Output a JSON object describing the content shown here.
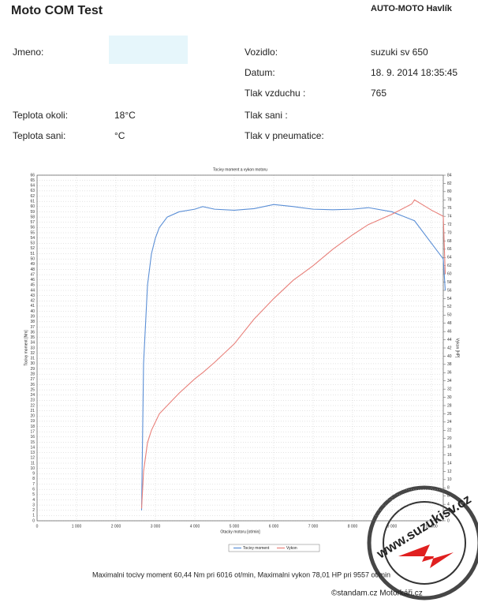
{
  "header": {
    "title": "Moto COM Test",
    "company": "AUTO-MOTO Havlík"
  },
  "fields": [
    {
      "label": "Jmeno:",
      "value": ""
    },
    {
      "label": "Vozidlo:",
      "value": "suzuki sv 650"
    },
    {
      "label": "Datum:",
      "value": "18. 9. 2014 18:35:45"
    },
    {
      "label": "Tlak vzduchu :",
      "value": "765"
    },
    {
      "label": "Teplota okoli:",
      "value": "18°C"
    },
    {
      "label": "Tlak sani :",
      "value": ""
    },
    {
      "label": "Teplota sani:",
      "value": "°C"
    },
    {
      "label": "Tlak v pneumatice:",
      "value": ""
    }
  ],
  "chart_data": {
    "type": "line",
    "title": "Tocivy moment a vykon motoru",
    "xlabel": "Otacky motoru [ot/min]",
    "ylabel": "Tocivy moment [Nm]",
    "y2label": "Vykon [HP]",
    "x": [
      2650,
      2700,
      2800,
      2900,
      3000,
      3100,
      3300,
      3600,
      4000,
      4200,
      4500,
      5000,
      5500,
      6000,
      6500,
      7000,
      7500,
      8000,
      8400,
      9000,
      9500,
      9570,
      10000,
      10200,
      10300,
      10350
    ],
    "series": [
      {
        "name": "Tocivy moment",
        "color": "#5b8fd6",
        "values": [
          2,
          30,
          45,
          51,
          54,
          56,
          58,
          59,
          59.5,
          60,
          59.5,
          59.3,
          59.6,
          60.4,
          60,
          59.5,
          59.4,
          59.5,
          59.8,
          59,
          57.5,
          57.3,
          53,
          51,
          50,
          44
        ]
      },
      {
        "name": "Vykon",
        "color": "#e8807a",
        "axis": "y2",
        "values": [
          3,
          12,
          19,
          22,
          24,
          26,
          28,
          31,
          34.5,
          36,
          38.5,
          43,
          49,
          54,
          58.5,
          62,
          66,
          69.5,
          72,
          74.5,
          77,
          78,
          75.5,
          74.5,
          74,
          60
        ]
      }
    ],
    "xlim": [
      0,
      10300
    ],
    "xticks": [
      0,
      {
        "value": 1000,
        "label": "1 000"
      },
      {
        "value": 2000,
        "label": "2 000"
      },
      {
        "value": 3000,
        "label": "3 000"
      },
      {
        "value": 4000,
        "label": "4 000"
      },
      {
        "value": 5000,
        "label": "5 000"
      },
      {
        "value": 6000,
        "label": "6 000"
      },
      {
        "value": 7000,
        "label": "7 000"
      },
      {
        "value": 8000,
        "label": "8 000"
      },
      {
        "value": 9000,
        "label": "9 000"
      },
      {
        "value": 10000,
        "label": "10 000"
      }
    ],
    "ylim": [
      0,
      66
    ],
    "yticks": [
      0,
      1,
      2,
      3,
      4,
      5,
      6,
      7,
      8,
      9,
      10,
      11,
      12,
      13,
      14,
      15,
      16,
      17,
      18,
      19,
      20,
      21,
      22,
      23,
      24,
      25,
      26,
      27,
      28,
      29,
      30,
      31,
      32,
      33,
      34,
      35,
      36,
      37,
      38,
      39,
      40,
      41,
      42,
      43,
      44,
      45,
      46,
      47,
      48,
      49,
      50,
      51,
      52,
      53,
      54,
      55,
      56,
      57,
      58,
      59,
      60,
      61,
      62,
      63,
      64,
      65,
      66
    ],
    "y2lim": [
      0,
      84
    ],
    "y2ticks": [
      0,
      2,
      4,
      6,
      8,
      10,
      12,
      14,
      16,
      18,
      20,
      22,
      24,
      26,
      28,
      30,
      32,
      34,
      36,
      38,
      40,
      42,
      44,
      46,
      48,
      50,
      52,
      54,
      56,
      58,
      60,
      62,
      64,
      66,
      68,
      70,
      72,
      74,
      76,
      78,
      80,
      82,
      84
    ],
    "grid": true
  },
  "footer": "Maximalni tocivy moment 60,44 Nm pri 6016 ot/min,  Maximalni vykon 78,01 HP pri 9557 ot/min",
  "watermark": {
    "site": "www.suzukisv.cz",
    "credit": "©standam.cz Motorkáři.cz"
  }
}
